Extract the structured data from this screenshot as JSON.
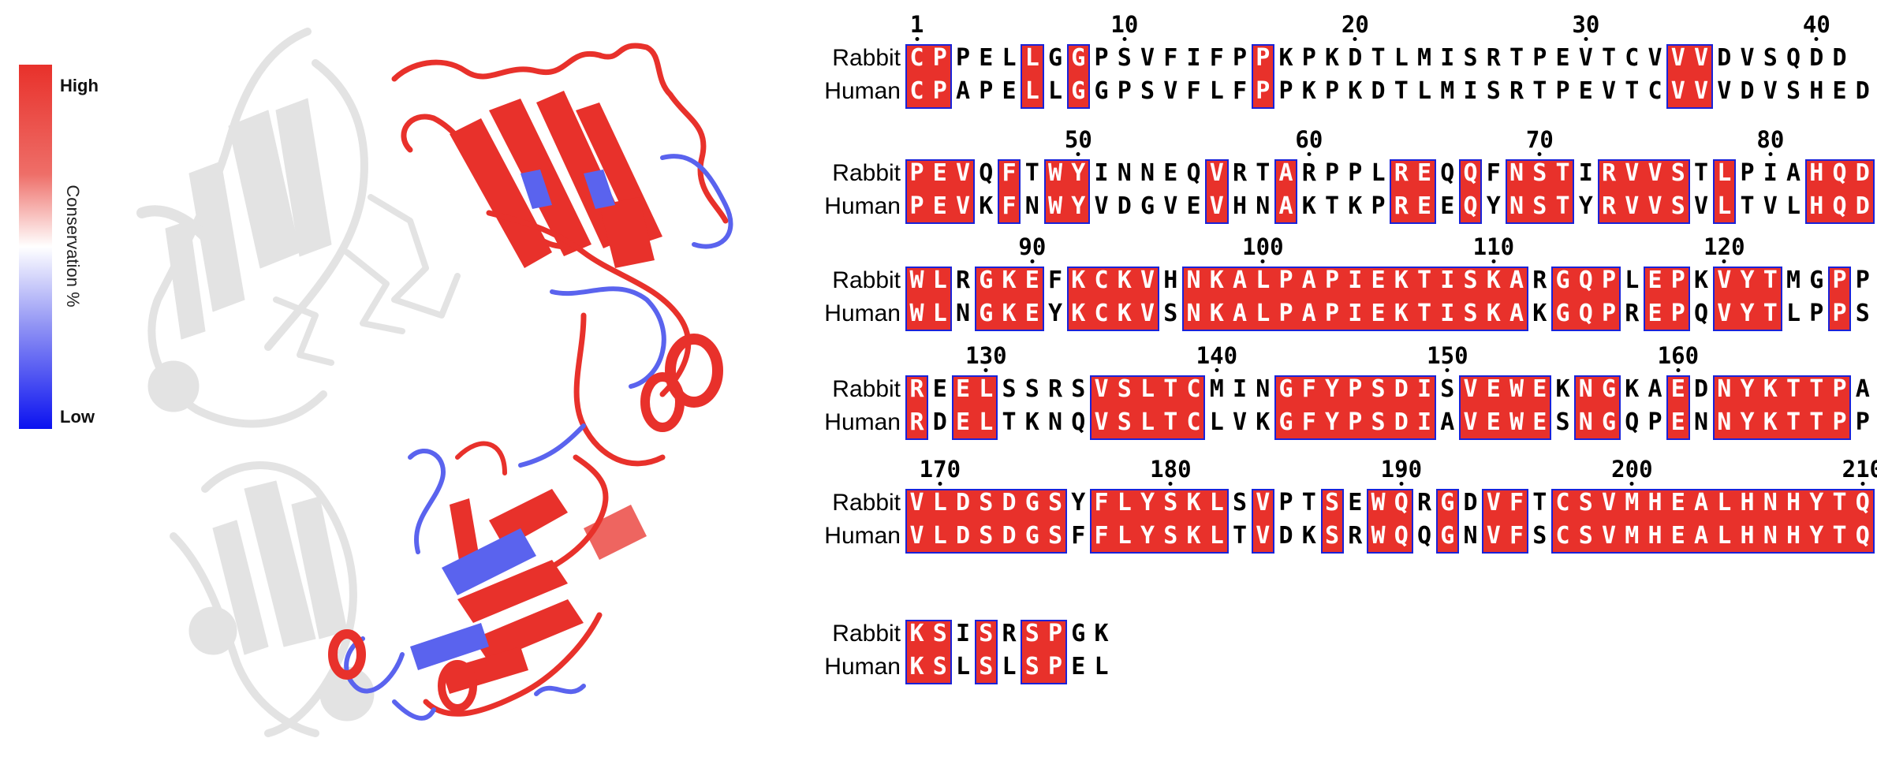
{
  "legend": {
    "high": "High",
    "low": "Low",
    "title": "Conservation %",
    "colors": {
      "high": "#e8312b",
      "mid": "#ffffff",
      "low": "#0b12f0"
    }
  },
  "structure": {
    "icon": "protein-ribbon-structure-icon",
    "colors": {
      "conserved": "#e8312b",
      "variable": "#5a63ee",
      "background": "#e3e3e3"
    }
  },
  "alignment": {
    "species": [
      "Rabbit",
      "Human"
    ],
    "colors": {
      "identical_fill": "#e8312b",
      "border": "#1a22d8"
    },
    "blocks": [
      {
        "start": 1,
        "numbers": [
          1,
          10,
          20,
          30,
          40
        ],
        "rabbit": "CPPELLGGPSVFIFPPKPKDTLMISRTPEVTCVVVDVSQDD",
        "human": "CPAPELLGGPSVFLFPPKPKDTLMISRTPEVTCVVVDVSHED"
      },
      {
        "start": 43,
        "numbers": [
          50,
          60,
          70,
          80
        ],
        "rabbit": "PEVQFTWYINNEQVRTARPPLREQQFNSTIRVVSTLPIAHQD",
        "human": "PEVKFNWYVDGVEVHNAKTKPREEQYNSTYRVVSVLTVLHQD"
      },
      {
        "start": 85,
        "numbers": [
          90,
          100,
          110,
          120
        ],
        "rabbit": "WLRGKEFKCKVHNKALPAPIEKTISKARGQPLEPKVYTMGPP",
        "human": "WLNGKEYKCKVSNKALPAPIEKTISKAKGQPREPQVYTLPPS"
      },
      {
        "start": 127,
        "numbers": [
          130,
          140,
          150,
          160
        ],
        "rabbit": "REELSSRSVSLTCMINGFYPSDISVEWEKNGKAEDNYKTTPA",
        "human": "RDELTKNQVSLTCLVKGFYPSDIAVEWESNGQPENNYKTTPP"
      },
      {
        "start": 169,
        "numbers": [
          170,
          180,
          190,
          200,
          210
        ],
        "rabbit": "VLDSDGSYFLYSKLSVPTSEWQRGDVFTCSVMHEALHNHYTQ",
        "human": "VLDSDGSFFLYSKLTVDKSRWQQGNVFSCSVMHEALHNHYTQ"
      },
      {
        "start": 211,
        "numbers": [],
        "rabbit": "KSISRSPGK",
        "human": "KSLSLSPEL"
      }
    ]
  }
}
